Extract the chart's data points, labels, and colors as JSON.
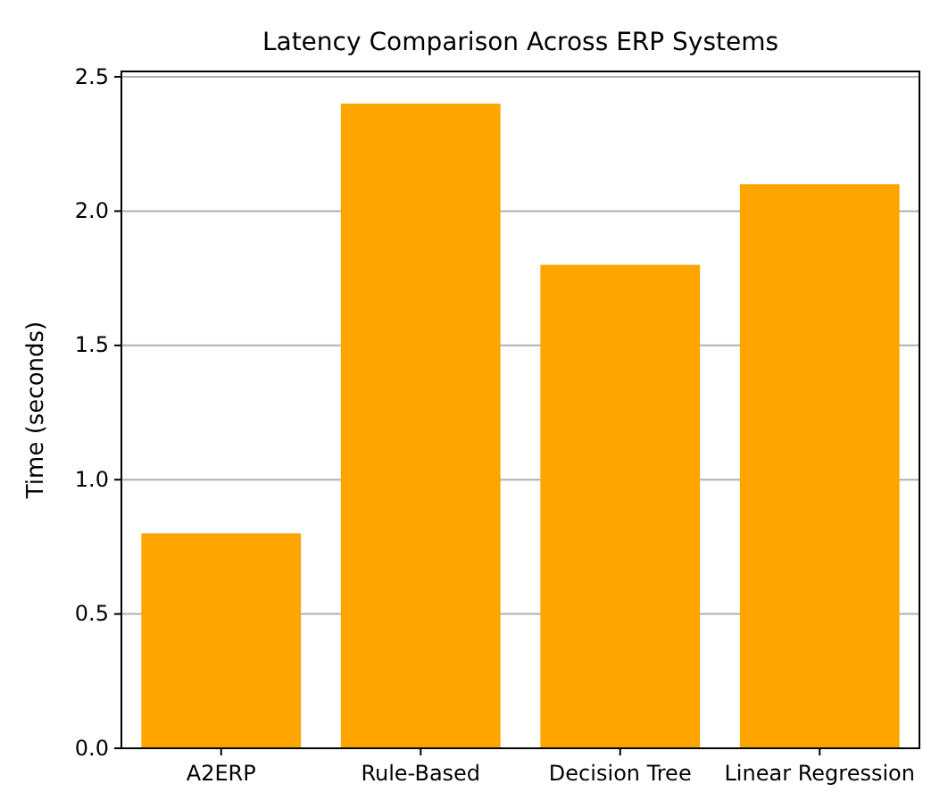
{
  "chart_data": {
    "type": "bar",
    "title": "Latency Comparison Across ERP Systems",
    "ylabel": "Time (seconds)",
    "categories": [
      "A2ERP",
      "Rule-Based",
      "Decision Tree",
      "Linear Regression"
    ],
    "values": [
      0.8,
      2.4,
      1.8,
      2.1
    ],
    "color": "#ffa500",
    "ylim": [
      0,
      2.52
    ],
    "yticks": [
      {
        "value": 0,
        "label": "0.0"
      },
      {
        "value": 0.5,
        "label": "0.5"
      },
      {
        "value": 1,
        "label": "1.0"
      },
      {
        "value": 1.5,
        "label": "1.5"
      },
      {
        "value": 2,
        "label": "2.0"
      },
      {
        "value": 2.5,
        "label": "2.5"
      }
    ],
    "grid": "y"
  }
}
